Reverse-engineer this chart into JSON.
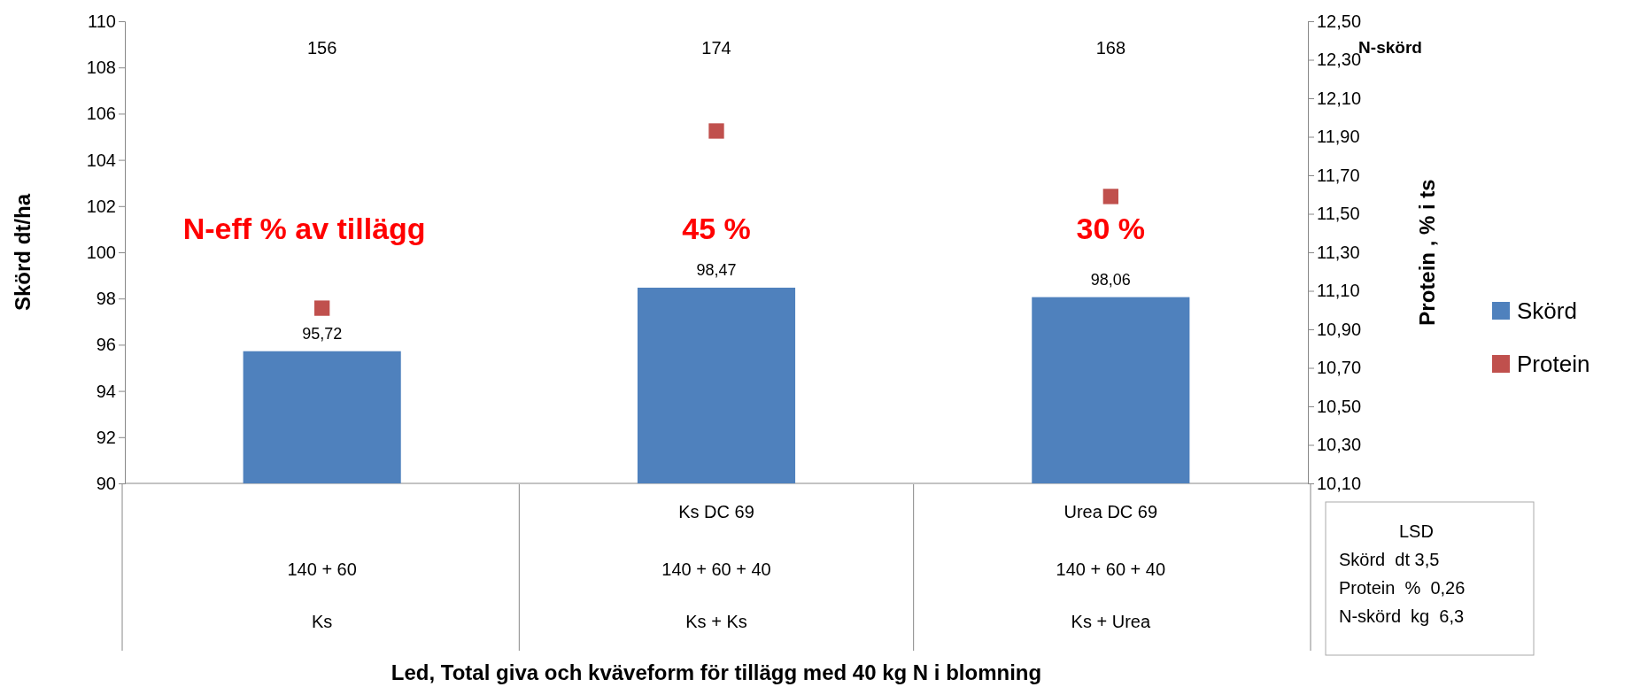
{
  "chart_data": {
    "type": "bar",
    "ylabel": "Skörd dt/ha",
    "y2label": "Protein , % i ts",
    "categories": [
      "\n140 + 60\nKs",
      "Ks DC 69\n140 + 60 + 40\nKs + Ks",
      "Urea DC 69\n140 + 60 + 40\nKs + Urea"
    ],
    "series": [
      {
        "name": "Skörd",
        "type": "bar",
        "color": "#4f81bd",
        "values": [
          95.72,
          98.47,
          98.06
        ],
        "value_labels": [
          "95,72",
          "98,47",
          "98,06"
        ]
      },
      {
        "name": "Protein",
        "type": "scatter",
        "axis": "y2",
        "marker": "square",
        "color": "#c0504d",
        "values": [
          11.01,
          11.93,
          11.59
        ]
      }
    ],
    "ylim": [
      90,
      110
    ],
    "yticks": [
      90,
      92,
      94,
      96,
      98,
      100,
      102,
      104,
      106,
      108,
      110
    ],
    "y2lim": [
      10.1,
      12.5
    ],
    "y2ticks": [
      {
        "value": 10.1,
        "label": "10,10"
      },
      {
        "value": 10.3,
        "label": "10,30"
      },
      {
        "value": 10.5,
        "label": "10,50"
      },
      {
        "value": 10.7,
        "label": "10,70"
      },
      {
        "value": 10.9,
        "label": "10,90"
      },
      {
        "value": 11.1,
        "label": "11,10"
      },
      {
        "value": 11.3,
        "label": "11,30"
      },
      {
        "value": 11.5,
        "label": "11,50"
      },
      {
        "value": 11.7,
        "label": "11,70"
      },
      {
        "value": 11.9,
        "label": "11,90"
      },
      {
        "value": 12.1,
        "label": "12,10"
      },
      {
        "value": 12.3,
        "label": "12,30"
      },
      {
        "value": 12.5,
        "label": "12,50"
      }
    ],
    "grid": false,
    "legend": "right",
    "annotations": [
      "156",
      "174",
      "168",
      "N-skörd",
      "N-eff % av tillägg",
      "45 %",
      "30 %",
      "LSD",
      "Skörd  dt 3,5",
      "Protein  %  0,26",
      "N-skörd  kg  6,3",
      "Led, Total giva och kväveform för tillägg med  40 kg N i blomning"
    ]
  }
}
